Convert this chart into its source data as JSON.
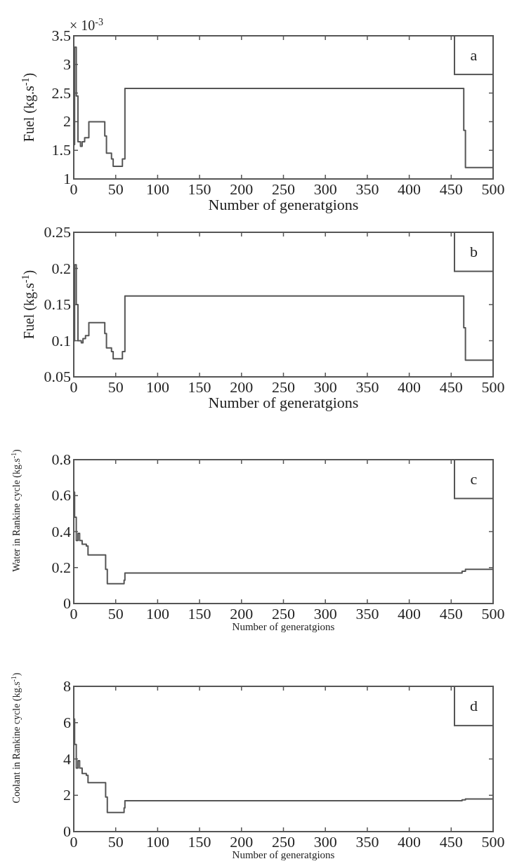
{
  "chart_data": [
    {
      "type": "step",
      "ylabel": "Fuel (kg.s$^{-1}$)",
      "xlabel": "Number of generatgions",
      "annotations": [
        "× 10$^{-3}$",
        "a"
      ],
      "xlim": [
        0,
        500
      ],
      "xticks": [
        0,
        50,
        100,
        150,
        200,
        250,
        300,
        350,
        400,
        450,
        500
      ],
      "ylim": [
        1,
        3.5
      ],
      "yticks": [
        1,
        1.5,
        2,
        2.5,
        3,
        3.5
      ],
      "series": [
        {
          "color": "#555555",
          "x": [
            0,
            1,
            3,
            5,
            8,
            10,
            13,
            18,
            37,
            39,
            45,
            47,
            58,
            61,
            465,
            467,
            500
          ],
          "values": [
            1.6,
            3.3,
            2.45,
            1.65,
            1.57,
            1.65,
            1.72,
            2.0,
            1.75,
            1.45,
            1.35,
            1.22,
            1.35,
            2.58,
            1.85,
            1.2,
            1.2
          ]
        }
      ]
    },
    {
      "type": "step",
      "ylabel": "Fuel (kg.s$^{-1}$)",
      "xlabel": "Number of generatgions",
      "annotations": [
        "b"
      ],
      "xlim": [
        0,
        500
      ],
      "xticks": [
        0,
        50,
        100,
        150,
        200,
        250,
        300,
        350,
        400,
        450,
        500
      ],
      "ylim": [
        0.05,
        0.25
      ],
      "yticks": [
        0.05,
        0.1,
        0.15,
        0.2,
        0.25
      ],
      "series": [
        {
          "color": "#555555",
          "x": [
            0,
            1,
            3,
            5,
            9,
            11,
            14,
            18,
            37,
            39,
            45,
            47,
            58,
            61,
            465,
            467,
            500
          ],
          "values": [
            0.1,
            0.205,
            0.15,
            0.1,
            0.097,
            0.103,
            0.107,
            0.125,
            0.11,
            0.09,
            0.085,
            0.075,
            0.085,
            0.162,
            0.118,
            0.073,
            0.073
          ]
        }
      ]
    },
    {
      "type": "step",
      "ylabel": "Water in Rankine cycle (kg.s$^{-1}$)",
      "xlabel": "Number of generatgions",
      "annotations": [
        "c"
      ],
      "xlim": [
        0,
        500
      ],
      "xticks": [
        0,
        50,
        100,
        150,
        200,
        250,
        300,
        350,
        400,
        450,
        500
      ],
      "ylim": [
        0,
        0.8
      ],
      "yticks": [
        0,
        0.2,
        0.4,
        0.6,
        0.8
      ],
      "series": [
        {
          "color": "#555555",
          "x": [
            0,
            1,
            3,
            5,
            7,
            10,
            15,
            17,
            38,
            40,
            60,
            61,
            463,
            467,
            500
          ],
          "values": [
            0.62,
            0.48,
            0.35,
            0.39,
            0.35,
            0.33,
            0.32,
            0.27,
            0.19,
            0.11,
            0.13,
            0.17,
            0.18,
            0.19,
            0.19
          ]
        }
      ]
    },
    {
      "type": "step",
      "ylabel": "Coolant in Rankine cycle (kg.s$^{-1}$)",
      "xlabel": "Number of generatgions",
      "annotations": [
        "d"
      ],
      "xlim": [
        0,
        500
      ],
      "xticks": [
        0,
        50,
        100,
        150,
        200,
        250,
        300,
        350,
        400,
        450,
        500
      ],
      "ylim": [
        0,
        8
      ],
      "yticks": [
        0,
        2,
        4,
        6,
        8
      ],
      "series": [
        {
          "color": "#555555",
          "x": [
            0,
            1,
            3,
            5,
            7,
            10,
            15,
            17,
            38,
            40,
            60,
            61,
            463,
            467,
            500
          ],
          "values": [
            6.2,
            4.8,
            3.5,
            3.9,
            3.5,
            3.2,
            3.1,
            2.7,
            1.9,
            1.05,
            1.3,
            1.7,
            1.75,
            1.8,
            1.8
          ]
        }
      ]
    }
  ]
}
